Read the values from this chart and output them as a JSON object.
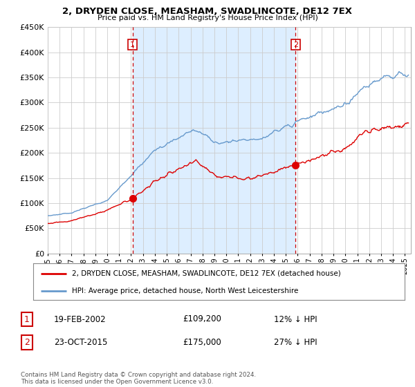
{
  "title": "2, DRYDEN CLOSE, MEASHAM, SWADLINCOTE, DE12 7EX",
  "subtitle": "Price paid vs. HM Land Registry's House Price Index (HPI)",
  "ytick_values": [
    0,
    50000,
    100000,
    150000,
    200000,
    250000,
    300000,
    350000,
    400000,
    450000
  ],
  "ylim": [
    0,
    450000
  ],
  "xlim_start": 1995.0,
  "xlim_end": 2025.5,
  "transaction1_x": 2002.13,
  "transaction1_y": 109200,
  "transaction2_x": 2015.81,
  "transaction2_y": 175000,
  "vline1_x": 2002.13,
  "vline2_x": 2015.81,
  "legend_house_label": "2, DRYDEN CLOSE, MEASHAM, SWADLINCOTE, DE12 7EX (detached house)",
  "legend_hpi_label": "HPI: Average price, detached house, North West Leicestershire",
  "annot1_date": "19-FEB-2002",
  "annot1_price": "£109,200",
  "annot1_pct": "12% ↓ HPI",
  "annot2_date": "23-OCT-2015",
  "annot2_price": "£175,000",
  "annot2_pct": "27% ↓ HPI",
  "footer": "Contains HM Land Registry data © Crown copyright and database right 2024.\nThis data is licensed under the Open Government Licence v3.0.",
  "house_color": "#dd0000",
  "hpi_color": "#6699cc",
  "shade_color": "#ddeeff",
  "vline_color": "#cc0000",
  "background_color": "#ffffff",
  "grid_color": "#cccccc"
}
